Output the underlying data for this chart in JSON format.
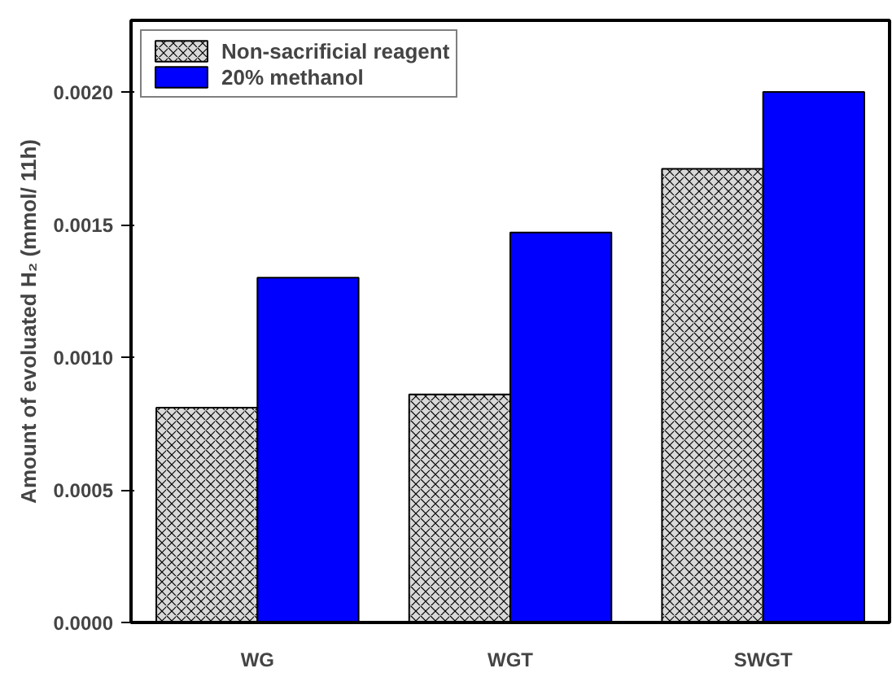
{
  "chart_data": {
    "type": "bar",
    "ylabel": "Amount of evoluated H₂ (mmol/ 11h)",
    "categories": [
      "WG",
      "WGT",
      "SWGT"
    ],
    "series": [
      {
        "name": "Non-sacrificial reagent",
        "color": "#d9d9d9",
        "values": [
          0.00081,
          0.00086,
          0.00171
        ]
      },
      {
        "name": "20% methanol",
        "color": "#0000ff",
        "values": [
          0.0013,
          0.00147,
          0.002
        ]
      }
    ],
    "ylim": [
      0,
      0.00227
    ],
    "yticks": [
      {
        "value": 0,
        "label": "0.0000"
      },
      {
        "value": 0.0005,
        "label": "0.0005"
      },
      {
        "value": 0.001,
        "label": "0.0010"
      },
      {
        "value": 0.0015,
        "label": "0.0015"
      },
      {
        "value": 0.002,
        "label": "0.0020"
      }
    ],
    "legend": "top left",
    "grid": false
  }
}
